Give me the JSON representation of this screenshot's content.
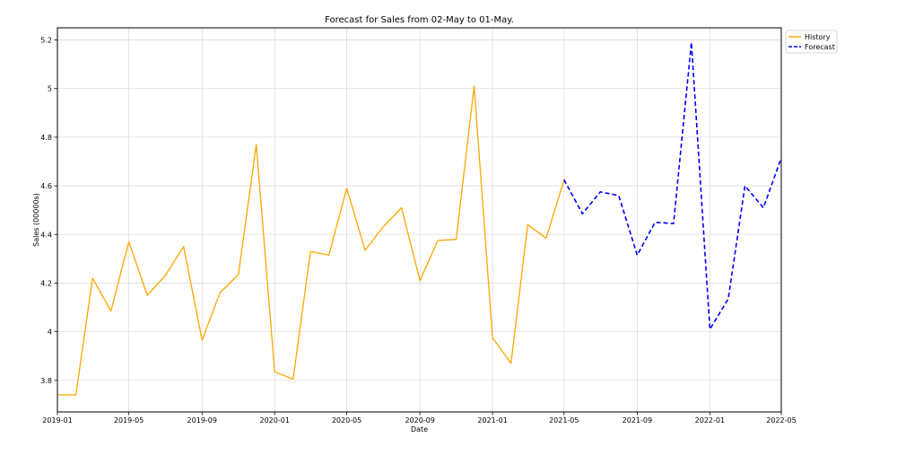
{
  "chart_data": {
    "type": "line",
    "title": "Forecast for Sales from 02-May to 01-May.",
    "xlabel": "Date",
    "ylabel": "Sales (00000s)",
    "x_range": [
      "2019-01-01",
      "2022-05-01"
    ],
    "ylim": [
      3.67,
      5.25
    ],
    "x_ticks": [
      "2019-01",
      "2019-05",
      "2019-09",
      "2020-01",
      "2020-05",
      "2020-09",
      "2021-01",
      "2021-05",
      "2021-09",
      "2022-01",
      "2022-05"
    ],
    "y_ticks": [
      3.8,
      4,
      4.2,
      4.4,
      4.6,
      4.8,
      5,
      5.2
    ],
    "y_tick_labels": [
      "3.8",
      "4",
      "4.2",
      "4.4",
      "4.6",
      "4.8",
      "5",
      "5.2"
    ],
    "grid": true,
    "legend_position": "top-right",
    "series": [
      {
        "name": "History",
        "color": "#FFA500",
        "style": "solid",
        "x": [
          "2019-01-01",
          "2019-02-01",
          "2019-03-01",
          "2019-04-01",
          "2019-05-01",
          "2019-06-01",
          "2019-07-01",
          "2019-08-01",
          "2019-09-01",
          "2019-10-01",
          "2019-11-01",
          "2019-12-01",
          "2020-01-01",
          "2020-02-01",
          "2020-03-01",
          "2020-04-01",
          "2020-05-01",
          "2020-06-01",
          "2020-07-01",
          "2020-08-01",
          "2020-09-01",
          "2020-10-01",
          "2020-11-01",
          "2020-12-01",
          "2021-01-01",
          "2021-02-01",
          "2021-03-01",
          "2021-04-01",
          "2021-05-01"
        ],
        "y": [
          3.74,
          3.74,
          4.22,
          4.085,
          4.37,
          4.15,
          4.23,
          4.35,
          3.965,
          4.16,
          4.235,
          4.77,
          3.835,
          3.805,
          4.33,
          4.315,
          4.59,
          4.335,
          4.43,
          4.51,
          4.21,
          4.375,
          4.38,
          5.01,
          3.975,
          3.87,
          4.44,
          4.385,
          4.625
        ]
      },
      {
        "name": "Forecast",
        "color": "#0000FF",
        "style": "dashed",
        "x": [
          "2021-05-01",
          "2021-06-01",
          "2021-07-01",
          "2021-08-01",
          "2021-09-01",
          "2021-10-01",
          "2021-11-01",
          "2021-12-01",
          "2022-01-01",
          "2022-02-01",
          "2022-03-01",
          "2022-04-01",
          "2022-05-01"
        ],
        "y": [
          4.625,
          4.485,
          4.575,
          4.56,
          4.315,
          4.45,
          4.445,
          5.19,
          4.01,
          4.135,
          4.6,
          4.51,
          4.715
        ]
      }
    ]
  }
}
